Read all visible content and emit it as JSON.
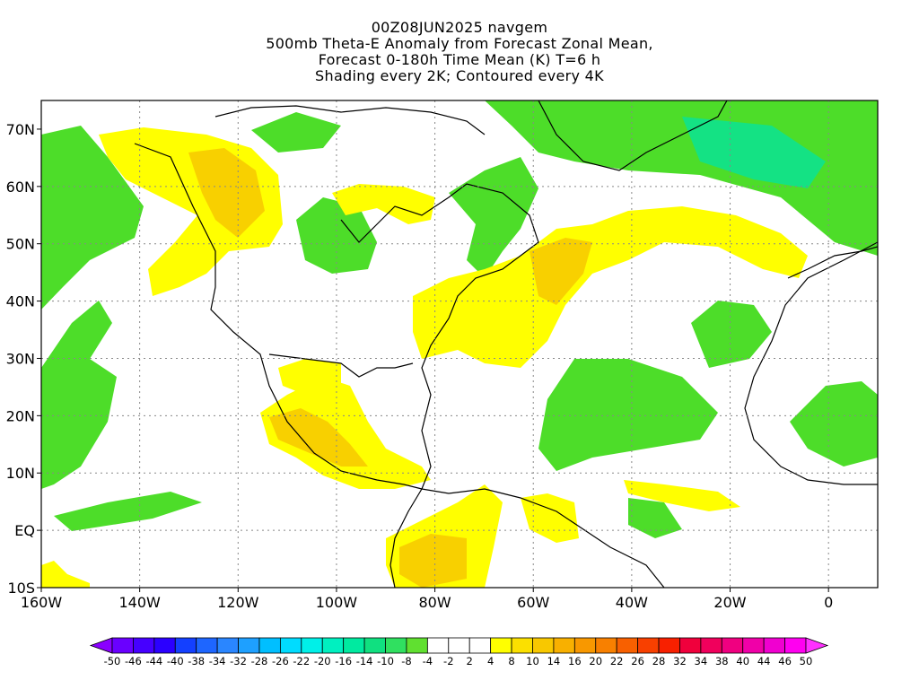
{
  "title": {
    "lines": [
      "00Z08JUN2025 navgem",
      "500mb Theta-E Anomaly from Forecast Zonal Mean,",
      "Forecast 0-180h Time Mean (K) T=6 h",
      "Shading every 2K; Contoured every 4K"
    ]
  },
  "axes": {
    "x_ticks": [
      "160W",
      "140W",
      "120W",
      "100W",
      "80W",
      "60W",
      "40W",
      "20W",
      "0"
    ],
    "y_ticks": [
      "70N",
      "60N",
      "50N",
      "40N",
      "30N",
      "20N",
      "10N",
      "EQ",
      "10S"
    ],
    "lon_range": [
      -160,
      10
    ],
    "lat_range": [
      -10,
      75
    ]
  },
  "colorbar": {
    "labels": [
      "-50",
      "-46",
      "-44",
      "-40",
      "-38",
      "-34",
      "-32",
      "-28",
      "-26",
      "-22",
      "-20",
      "-16",
      "-14",
      "-10",
      "-8",
      "-4",
      "-2",
      "2",
      "4",
      "8",
      "10",
      "14",
      "16",
      "20",
      "22",
      "26",
      "28",
      "32",
      "34",
      "38",
      "40",
      "44",
      "46",
      "50"
    ],
    "colors": [
      "#8a00ff",
      "#6a00ff",
      "#4600ff",
      "#2b00ff",
      "#1440ff",
      "#1e66ff",
      "#2a86ff",
      "#1ea0ff",
      "#00bfff",
      "#00dcff",
      "#00f0e8",
      "#00f0c0",
      "#00eaa0",
      "#10e080",
      "#30e060",
      "#60e030",
      "#ffffff",
      "#ffffff",
      "#ffffff",
      "#ffff00",
      "#fbe000",
      "#f8c800",
      "#f8b000",
      "#f89800",
      "#f88000",
      "#f86000",
      "#f84000",
      "#f82000",
      "#f0003c",
      "#f0005c",
      "#f00080",
      "#f000a8",
      "#f000d0",
      "#ff00f0",
      "#ff30ff"
    ]
  },
  "fields": {
    "colors": {
      "neg_light": "#4ddd29",
      "neg_mid": "#14e284",
      "pos_light": "#ffff00",
      "pos_mid": "#f8d000",
      "pos_strong": "#f3b400",
      "land_outline": "#000000",
      "grid": "#888888"
    }
  }
}
